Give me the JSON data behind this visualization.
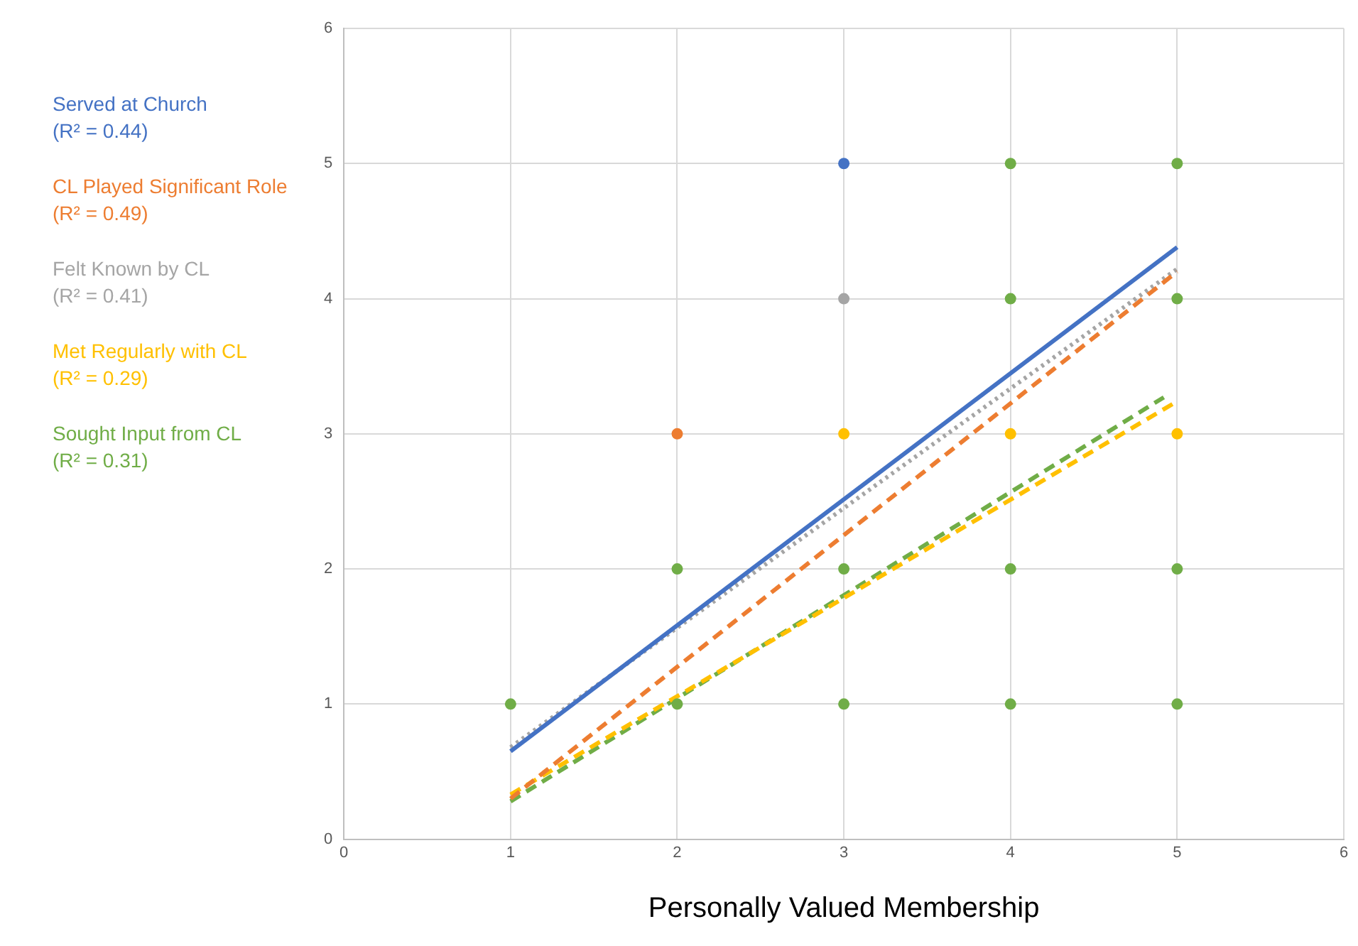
{
  "chart_data": {
    "type": "scatter",
    "xlabel": "Personally Valued Membership",
    "xlim": [
      0,
      6
    ],
    "xticks": [
      0,
      1,
      2,
      3,
      4,
      5,
      6
    ],
    "ylim": [
      0,
      6
    ],
    "yticks": [
      0,
      1,
      2,
      3,
      4,
      5,
      6
    ],
    "grid": true,
    "legend": "left",
    "annotations": [
      "(R² = 0.44)",
      "(R² = 0.49)",
      "(R² = 0.41)",
      "(R² = 0.29)",
      "(R² = 0.31)"
    ],
    "series": [
      {
        "color": "#4472c4",
        "marker": "circle",
        "x": [
          3
        ],
        "values": [
          5
        ]
      },
      {
        "color": "#ed7d31",
        "marker": "circle",
        "x": [
          2
        ],
        "values": [
          3
        ]
      },
      {
        "color": "#a5a5a5",
        "marker": "circle",
        "x": [
          3
        ],
        "values": [
          4
        ]
      },
      {
        "color": "#ffc000",
        "marker": "circle",
        "x": [
          3,
          4,
          5
        ],
        "values": [
          3,
          3,
          3
        ]
      },
      {
        "color": "#70ad47",
        "marker": "circle",
        "x": [
          1,
          2,
          2,
          3,
          3,
          4,
          4,
          4,
          4,
          5,
          5,
          5,
          5
        ],
        "values": [
          1,
          1,
          2,
          1,
          2,
          1,
          2,
          4,
          5,
          1,
          2,
          4,
          5
        ]
      },
      {
        "type": "line",
        "name": "Served at Church",
        "color": "#4472c4",
        "marker": "none",
        "line_style": "solid",
        "x": [
          1,
          5
        ],
        "values": [
          0.65,
          4.38
        ]
      },
      {
        "type": "line",
        "name": "CL Played Significant Role",
        "color": "#ed7d31",
        "marker": "none",
        "line_style": "dashed",
        "x": [
          1,
          5
        ],
        "values": [
          0.3,
          4.2
        ]
      },
      {
        "type": "line",
        "name": "Felt Known by CL",
        "color": "#a5a5a5",
        "marker": "none",
        "line_style": "dotted",
        "x": [
          1,
          5
        ],
        "values": [
          0.68,
          4.22
        ]
      },
      {
        "type": "line",
        "name": "Met Regularly with CL",
        "color": "#ffc000",
        "marker": "none",
        "line_style": "dashed",
        "x": [
          1,
          5
        ],
        "values": [
          0.33,
          3.24
        ]
      },
      {
        "type": "line",
        "name": "Sought Input from CL",
        "color": "#70ad47",
        "marker": "none",
        "line_style": "dashed",
        "x": [
          1,
          4.92
        ],
        "values": [
          0.28,
          3.27
        ]
      }
    ]
  }
}
